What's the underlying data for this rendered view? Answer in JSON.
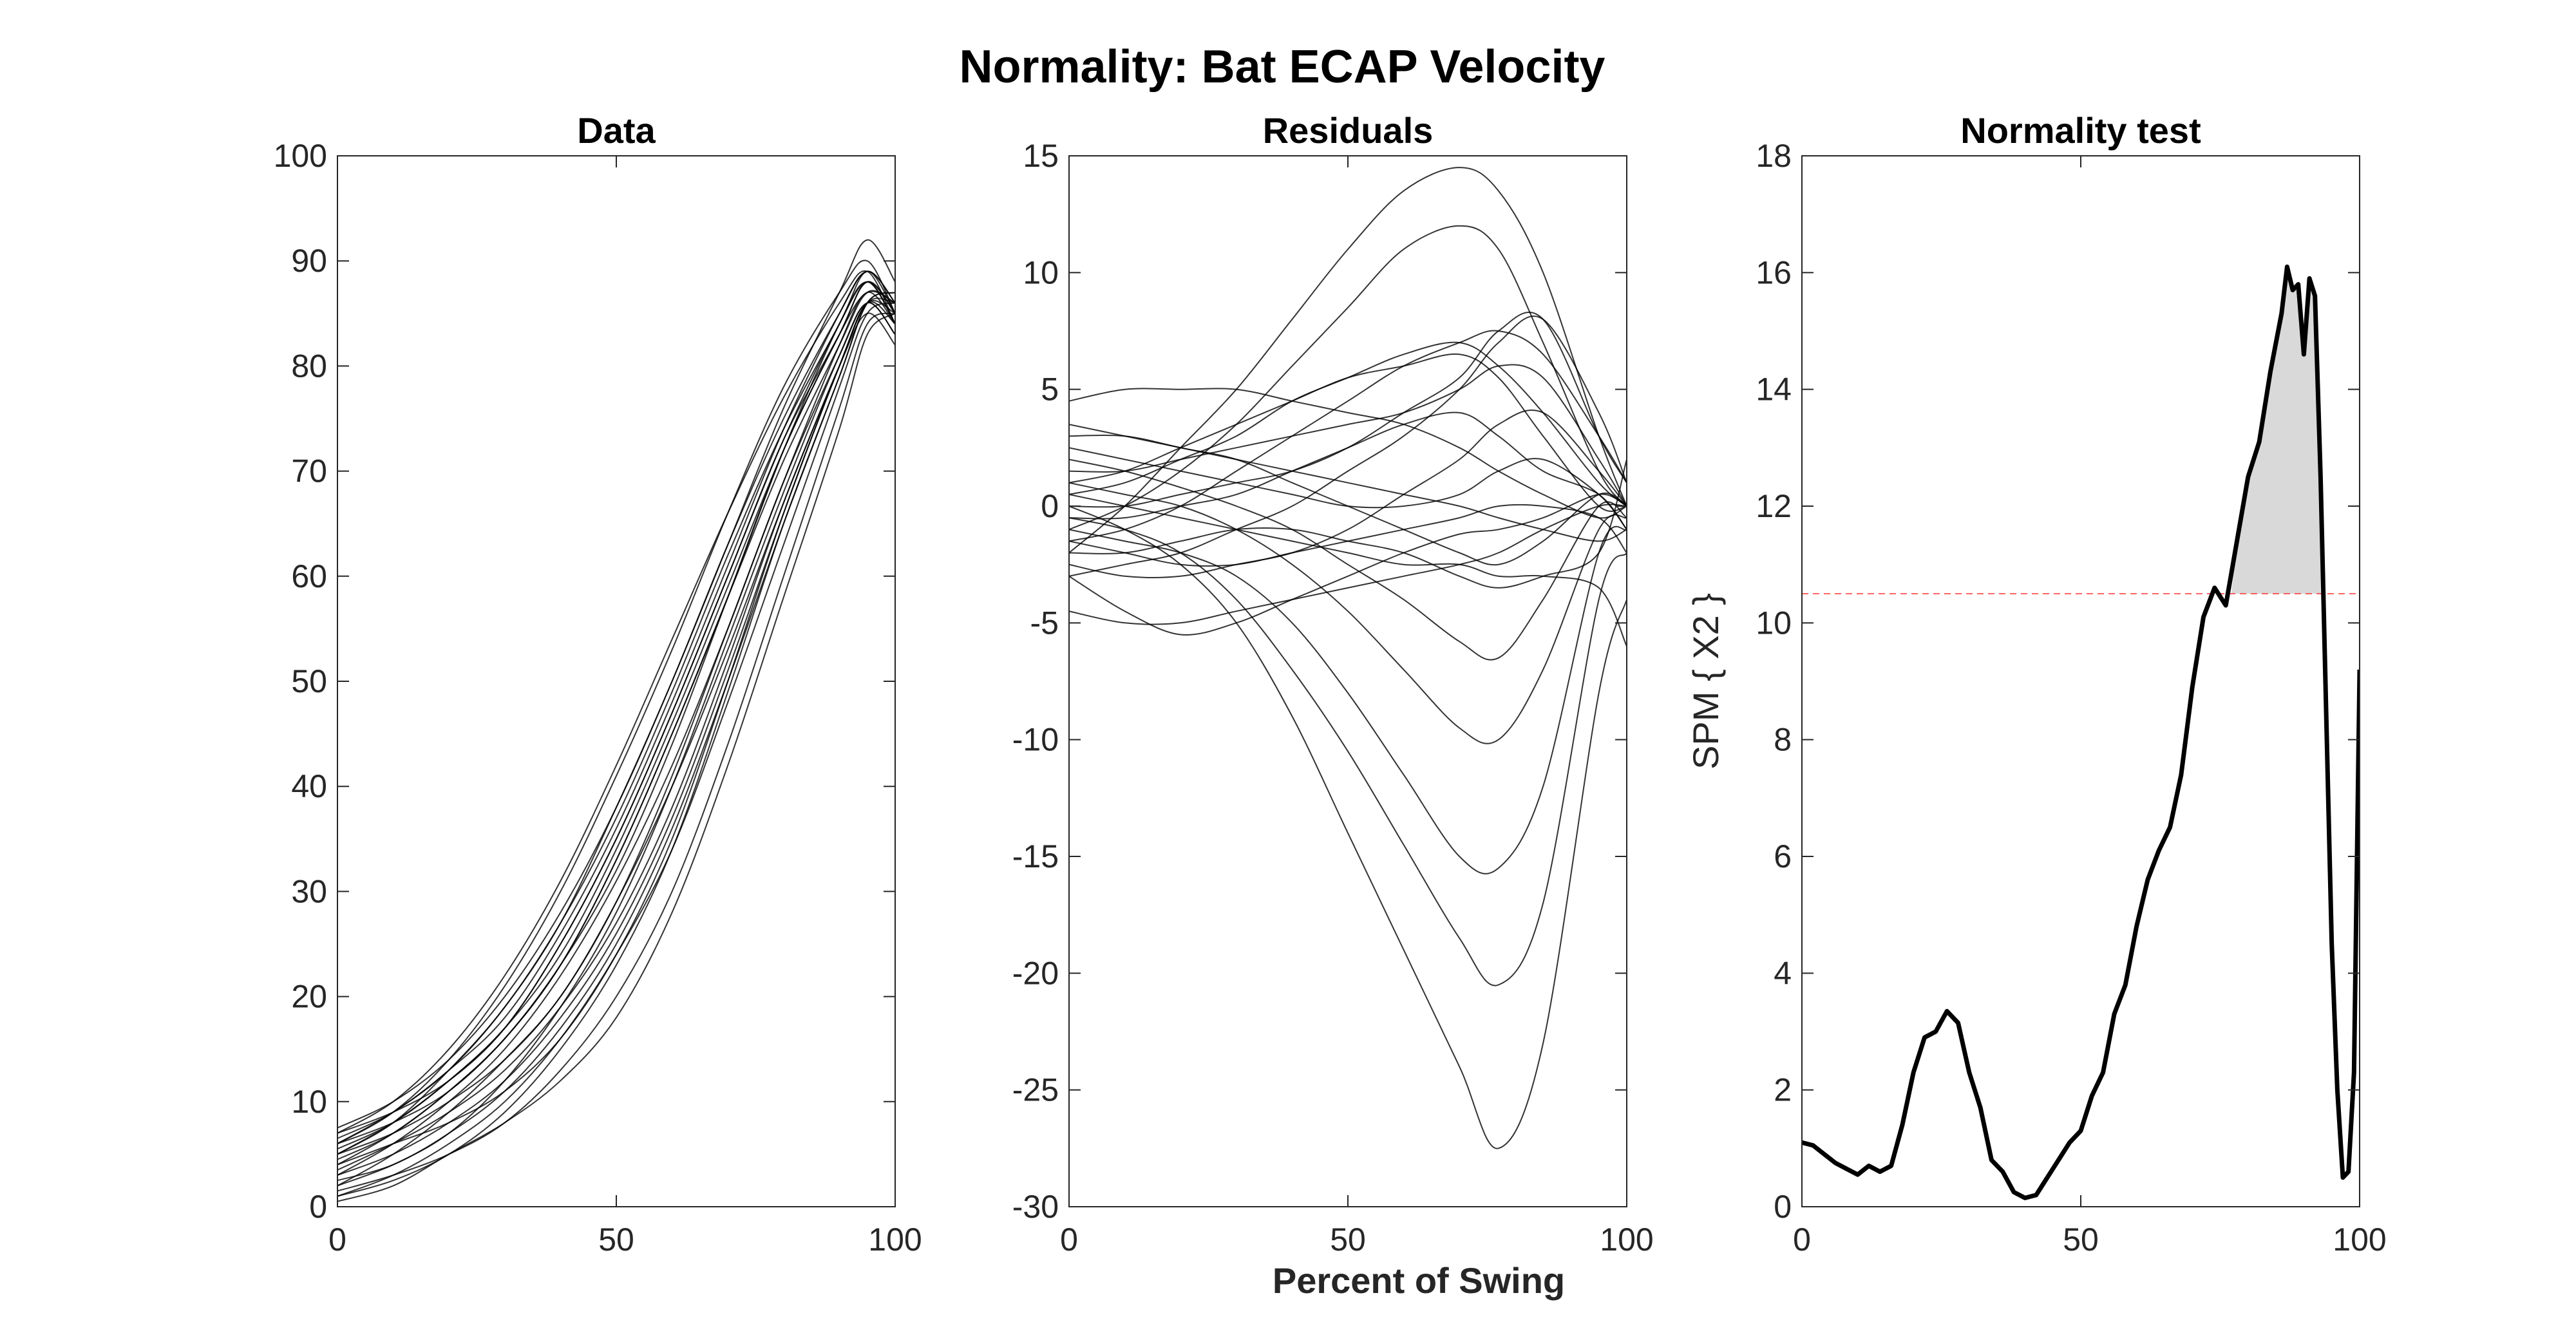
{
  "figure": {
    "title": "Normality: Bat ECAP Velocity",
    "shared_xlabel": "Percent of Swing"
  },
  "colors": {
    "data_lines": "#000000",
    "axes": "#262626",
    "spm_line": "#000000",
    "threshold": "#ff0000",
    "fill": "#d9d9d9"
  },
  "chart_data": [
    {
      "type": "line",
      "title": "Data",
      "xlabel": "",
      "ylabel": "",
      "xlim": [
        0,
        100
      ],
      "ylim": [
        0,
        100
      ],
      "xticks": [
        0,
        50,
        100
      ],
      "yticks": [
        0,
        10,
        20,
        30,
        40,
        50,
        60,
        70,
        80,
        90,
        100
      ],
      "grid": false,
      "legend": "none",
      "description": "about 24 individual trial curves rising from ~0-8 at 0% to ~82-93 near 95-100%",
      "x": [
        0,
        10,
        20,
        30,
        40,
        50,
        60,
        70,
        80,
        90,
        95,
        100
      ],
      "series": [
        {
          "values": [
            6,
            9,
            13,
            19,
            27,
            37,
            49,
            62,
            74,
            84,
            89,
            85
          ]
        },
        {
          "values": [
            7.5,
            10,
            14,
            20,
            28,
            38,
            50,
            63,
            76,
            87,
            92,
            88
          ]
        },
        {
          "values": [
            5,
            8,
            12,
            17,
            25,
            35,
            47,
            60,
            73,
            83,
            88,
            84
          ]
        },
        {
          "values": [
            6.5,
            9,
            13,
            18,
            26,
            36,
            48,
            61,
            74,
            85,
            89,
            86
          ]
        },
        {
          "values": [
            4,
            7,
            11,
            16,
            23,
            32,
            44,
            58,
            72,
            83,
            88,
            85
          ]
        },
        {
          "values": [
            3,
            6,
            10,
            15,
            22,
            31,
            42,
            55,
            69,
            81,
            86,
            83
          ]
        },
        {
          "values": [
            2,
            5,
            9,
            14,
            20,
            29,
            40,
            53,
            67,
            80,
            85,
            82
          ]
        },
        {
          "values": [
            1,
            3,
            6,
            10,
            16,
            24,
            34,
            48,
            63,
            78,
            85,
            86
          ]
        },
        {
          "values": [
            0.5,
            2,
            5,
            8,
            12,
            18,
            28,
            42,
            58,
            74,
            83,
            85
          ]
        },
        {
          "values": [
            4,
            6,
            8,
            11,
            16,
            24,
            35,
            50,
            66,
            80,
            86,
            86
          ]
        },
        {
          "values": [
            6,
            8,
            11,
            16,
            23,
            33,
            45,
            58,
            72,
            84,
            88,
            84
          ]
        },
        {
          "values": [
            5.5,
            8,
            12,
            17,
            24,
            34,
            46,
            59,
            72,
            83,
            87,
            86
          ]
        },
        {
          "values": [
            7,
            9,
            12,
            17,
            25,
            35,
            47,
            60,
            73,
            84,
            88,
            85
          ]
        },
        {
          "values": [
            3.5,
            6,
            9,
            13,
            19,
            27,
            38,
            52,
            67,
            80,
            86,
            84
          ]
        },
        {
          "values": [
            2.5,
            4,
            7,
            11,
            17,
            25,
            36,
            50,
            65,
            79,
            86,
            87
          ]
        },
        {
          "values": [
            5,
            7,
            10,
            14,
            20,
            29,
            41,
            55,
            69,
            82,
            87,
            84
          ]
        },
        {
          "values": [
            6,
            9,
            14,
            21,
            30,
            41,
            53,
            66,
            78,
            87,
            90,
            85
          ]
        },
        {
          "values": [
            4.5,
            7,
            11,
            16,
            23,
            33,
            45,
            58,
            71,
            82,
            87,
            86
          ]
        },
        {
          "values": [
            1.5,
            3,
            5,
            8,
            13,
            20,
            30,
            44,
            60,
            76,
            84,
            85
          ]
        },
        {
          "values": [
            3,
            5,
            8,
            12,
            18,
            26,
            37,
            51,
            66,
            80,
            86,
            85
          ]
        },
        {
          "values": [
            7,
            10,
            15,
            22,
            31,
            42,
            54,
            66,
            77,
            86,
            89,
            84
          ]
        },
        {
          "values": [
            2,
            4,
            7,
            12,
            19,
            28,
            40,
            54,
            68,
            81,
            86,
            83
          ]
        },
        {
          "values": [
            5,
            8,
            13,
            19,
            27,
            38,
            50,
            63,
            75,
            85,
            89,
            86
          ]
        },
        {
          "values": [
            1,
            2.5,
            5,
            9,
            15,
            23,
            34,
            49,
            65,
            79,
            86,
            87
          ]
        }
      ]
    },
    {
      "type": "line",
      "title": "Residuals",
      "xlabel": "Percent of Swing",
      "ylabel": "",
      "xlim": [
        0,
        100
      ],
      "ylim": [
        -30,
        15
      ],
      "xticks": [
        0,
        50,
        100
      ],
      "yticks": [
        -30,
        -25,
        -20,
        -15,
        -10,
        -5,
        0,
        5,
        10,
        15
      ],
      "grid": false,
      "legend": "none",
      "description": "residual curves for each trial",
      "x": [
        0,
        10,
        20,
        30,
        40,
        50,
        60,
        70,
        77,
        85,
        95,
        100
      ],
      "series": [
        {
          "values": [
            0,
            -1,
            -2.5,
            -5,
            -9,
            -14,
            -19,
            -24,
            -27.5,
            -23,
            -8,
            -4
          ]
        },
        {
          "values": [
            -0.5,
            -1,
            -2,
            -4,
            -7,
            -10.5,
            -14.5,
            -18.5,
            -20.5,
            -17,
            -4,
            -2
          ]
        },
        {
          "values": [
            -1,
            -1.5,
            -2,
            -3,
            -5,
            -8,
            -11.5,
            -15,
            -15.5,
            -12,
            -2,
            -1
          ]
        },
        {
          "values": [
            1,
            0.5,
            0,
            -1,
            -2.5,
            -4.5,
            -7,
            -9.5,
            -10,
            -7,
            -1,
            -0.5
          ]
        },
        {
          "values": [
            2,
            1.5,
            0.8,
            0,
            -1,
            -2.5,
            -4,
            -5.8,
            -6.5,
            -4,
            0,
            -0.5
          ]
        },
        {
          "values": [
            3,
            3,
            2.5,
            2,
            1,
            0,
            -1,
            -2,
            -2.5,
            -1.5,
            0.5,
            0
          ]
        },
        {
          "values": [
            -4.5,
            -5,
            -5,
            -4.5,
            -4,
            -3.5,
            -3,
            -2.5,
            -2,
            -1,
            0,
            0
          ]
        },
        {
          "values": [
            -3,
            -4.5,
            -5.5,
            -5,
            -4,
            -3,
            -2,
            -1.2,
            -1,
            -0.5,
            0.5,
            0
          ]
        },
        {
          "values": [
            4.5,
            5,
            5,
            5,
            4.5,
            4,
            3.5,
            2.5,
            1.5,
            0.5,
            -0.5,
            0
          ]
        },
        {
          "values": [
            -2,
            0,
            2.5,
            5,
            8,
            11,
            13.5,
            14.5,
            13.5,
            10,
            3,
            0
          ]
        },
        {
          "values": [
            -1,
            0,
            1.5,
            3.5,
            6,
            8.5,
            11,
            12,
            11,
            7,
            1.5,
            0
          ]
        },
        {
          "values": [
            0.5,
            1,
            2,
            3,
            4.5,
            5.5,
            6.5,
            7,
            6,
            4,
            1,
            0
          ]
        },
        {
          "values": [
            -1.5,
            -1,
            0,
            1.5,
            3,
            4.5,
            6,
            7,
            7.5,
            6.5,
            3,
            1
          ]
        },
        {
          "values": [
            1.5,
            1.5,
            2,
            2.5,
            3,
            3.5,
            4,
            5,
            6,
            5.5,
            2,
            0
          ]
        },
        {
          "values": [
            -3,
            -2.5,
            -2,
            -1,
            0,
            1.5,
            3,
            5,
            7,
            8,
            4,
            1
          ]
        },
        {
          "values": [
            -2.5,
            -3,
            -3,
            -2.5,
            -2,
            -1,
            0.5,
            2,
            3.5,
            4,
            1.5,
            0
          ]
        },
        {
          "values": [
            0,
            0,
            0.5,
            1,
            1.5,
            2.5,
            4,
            5.5,
            7.5,
            8,
            3,
            1
          ]
        },
        {
          "values": [
            2.5,
            2,
            1.5,
            1,
            0.5,
            0,
            0,
            0.5,
            1.5,
            2,
            0.5,
            -1
          ]
        },
        {
          "values": [
            -1.5,
            -2,
            -2.5,
            -2.5,
            -2,
            -1.5,
            -1,
            -0.5,
            0,
            0,
            -0.5,
            -2
          ]
        },
        {
          "values": [
            3.5,
            3,
            2.5,
            2,
            1.5,
            1,
            0.5,
            0,
            -0.5,
            -1,
            -1.5,
            -1
          ]
        },
        {
          "values": [
            -0.5,
            -0.5,
            0,
            0.5,
            1.5,
            2.5,
            3.5,
            4,
            3,
            1.5,
            0.5,
            -1
          ]
        },
        {
          "values": [
            1,
            1.5,
            2.5,
            3.5,
            4.5,
            5.5,
            6,
            6.5,
            5.5,
            3,
            0,
            0
          ]
        },
        {
          "values": [
            -2,
            -2,
            -1.5,
            -1,
            -1,
            -1.5,
            -2,
            -3,
            -3.5,
            -3,
            -2,
            2
          ]
        },
        {
          "values": [
            0.5,
            0,
            -0.5,
            -1,
            -1.5,
            -2,
            -2.5,
            -2.5,
            -3,
            -3,
            -3.5,
            -6
          ]
        }
      ]
    },
    {
      "type": "line",
      "title": "Normality test",
      "xlabel": "",
      "ylabel": "SPM { X2 }",
      "xlim": [
        0,
        100
      ],
      "ylim": [
        0,
        18
      ],
      "xticks": [
        0,
        50,
        100
      ],
      "yticks": [
        0,
        2,
        4,
        6,
        8,
        10,
        12,
        14,
        16,
        18
      ],
      "grid": false,
      "legend": "none",
      "threshold": 10.5,
      "cluster_x": [
        77,
        93
      ],
      "x": [
        0,
        2,
        4,
        6,
        8,
        10,
        12,
        14,
        16,
        18,
        20,
        22,
        24,
        26,
        28,
        30,
        32,
        34,
        36,
        38,
        40,
        42,
        44,
        46,
        48,
        50,
        52,
        54,
        56,
        58,
        60,
        62,
        64,
        66,
        68,
        70,
        72,
        74,
        76,
        78,
        80,
        82,
        84,
        86,
        87,
        88,
        89,
        90,
        91,
        92,
        93,
        94,
        95,
        96,
        97,
        98,
        99,
        100
      ],
      "values": [
        1.1,
        1.05,
        0.9,
        0.75,
        0.65,
        0.55,
        0.7,
        0.6,
        0.7,
        1.4,
        2.3,
        2.9,
        3.0,
        3.35,
        3.15,
        2.3,
        1.7,
        0.8,
        0.6,
        0.25,
        0.15,
        0.2,
        0.5,
        0.8,
        1.1,
        1.3,
        1.9,
        2.3,
        3.3,
        3.8,
        4.8,
        5.6,
        6.1,
        6.5,
        7.4,
        8.9,
        10.1,
        10.6,
        10.3,
        11.4,
        12.5,
        13.1,
        14.3,
        15.3,
        16.1,
        15.7,
        15.8,
        14.6,
        15.9,
        15.6,
        12.5,
        8.5,
        4.5,
        2.0,
        0.5,
        0.6,
        2.3,
        9.2
      ]
    }
  ]
}
